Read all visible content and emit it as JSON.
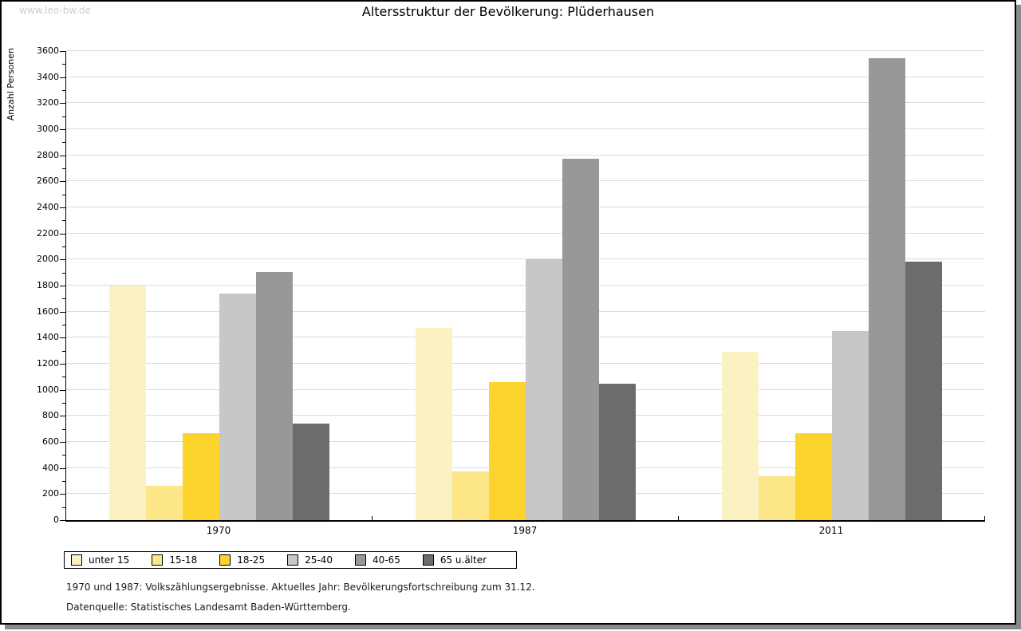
{
  "watermark": "www.leo-bw.de",
  "header": {
    "title": "Altersstruktur der Bevölkerung: Plüderhausen"
  },
  "footer": {
    "line1": "1970 und 1987: Volkszählungsergebnisse. Aktuelles Jahr: Bevölkerungsfortschreibung zum 31.12.",
    "line2": "Datenquelle: Statistisches Landesamt Baden-Württemberg."
  },
  "chart_data": {
    "type": "bar",
    "title": "Altersstruktur der Bevölkerung: Plüderhausen",
    "xlabel": "",
    "ylabel": "Anzahl Personen",
    "ylim": [
      0,
      3600
    ],
    "ytick_step": 200,
    "yminor_step": 100,
    "grid": true,
    "legend_position": "bottom",
    "categories": [
      "1970",
      "1987",
      "2011"
    ],
    "series": [
      {
        "name": "unter 15",
        "color": "#FBF2C4",
        "values": [
          1800,
          1475,
          1290
        ]
      },
      {
        "name": "15-18",
        "color": "#FCE687",
        "values": [
          265,
          375,
          335
        ]
      },
      {
        "name": "18-25",
        "color": "#FCD42D",
        "values": [
          665,
          1060,
          670
        ]
      },
      {
        "name": "25-40",
        "color": "#C7C7C7",
        "values": [
          1740,
          2000,
          1450
        ]
      },
      {
        "name": "40-65",
        "color": "#989898",
        "values": [
          1905,
          2775,
          3545
        ]
      },
      {
        "name": "65 u.älter",
        "color": "#6C6C6C",
        "values": [
          740,
          1050,
          1985
        ]
      }
    ]
  }
}
